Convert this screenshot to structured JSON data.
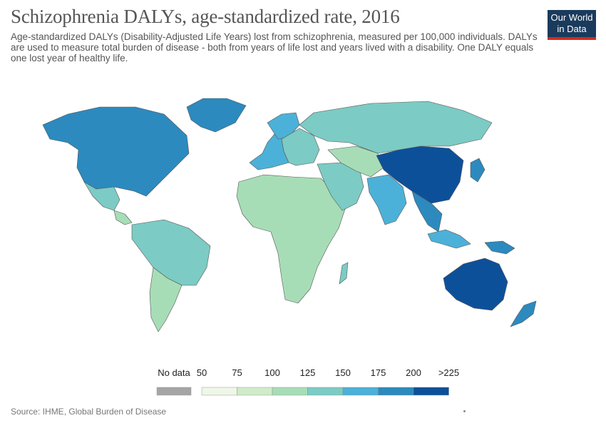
{
  "header": {
    "title": "Schizophrenia DALYs, age-standardized rate, 2016",
    "subtitle": "Age-standardized DALYs (Disability-Adjusted Life Years) lost from schizophrenia, measured per 100,000 individuals. DALYs are used to measure total burden of disease - both from years of life lost and years lived with a disability. One DALY equals one lost year of healthy life."
  },
  "logo": {
    "line1": "Our World",
    "line2": "in Data"
  },
  "legend": {
    "no_data_label": "No data",
    "no_data_color": "#a5a5a5",
    "tick_labels": [
      "50",
      "75",
      "100",
      "125",
      "150",
      "175",
      "200",
      ">225"
    ],
    "bin_colors": [
      "#eef7e8",
      "#cfecc9",
      "#a7ddb6",
      "#7ccbc4",
      "#4cb1d8",
      "#2c8abf",
      "#0d509a"
    ]
  },
  "footer": {
    "source": "Source: IHME, Global Burden of Disease"
  },
  "map": {
    "border_color": "#555555",
    "regions": [
      {
        "name": "north-america",
        "color": "#2c8abf"
      },
      {
        "name": "greenland",
        "color": "#2c8abf"
      },
      {
        "name": "mexico",
        "color": "#7ccbc4"
      },
      {
        "name": "central-america",
        "color": "#a7ddb6"
      },
      {
        "name": "south-america",
        "color": "#7ccbc4"
      },
      {
        "name": "southern-cone",
        "color": "#a7ddb6"
      },
      {
        "name": "western-europe",
        "color": "#4cb1d8"
      },
      {
        "name": "scandinavia",
        "color": "#4cb1d8"
      },
      {
        "name": "eastern-europe",
        "color": "#7ccbc4"
      },
      {
        "name": "russia",
        "color": "#7ccbc4"
      },
      {
        "name": "africa",
        "color": "#a7ddb6"
      },
      {
        "name": "middle-east",
        "color": "#7ccbc4"
      },
      {
        "name": "central-asia",
        "color": "#a7ddb6"
      },
      {
        "name": "south-asia",
        "color": "#4cb1d8"
      },
      {
        "name": "china",
        "color": "#0d509a"
      },
      {
        "name": "japan",
        "color": "#2c8abf"
      },
      {
        "name": "southeast-asia",
        "color": "#2c8abf"
      },
      {
        "name": "indonesia",
        "color": "#4cb1d8"
      },
      {
        "name": "papua-new-guinea",
        "color": "#2c8abf"
      },
      {
        "name": "australia",
        "color": "#0d509a"
      },
      {
        "name": "new-zealand",
        "color": "#2c8abf"
      },
      {
        "name": "madagascar",
        "color": "#7ccbc4"
      }
    ]
  }
}
